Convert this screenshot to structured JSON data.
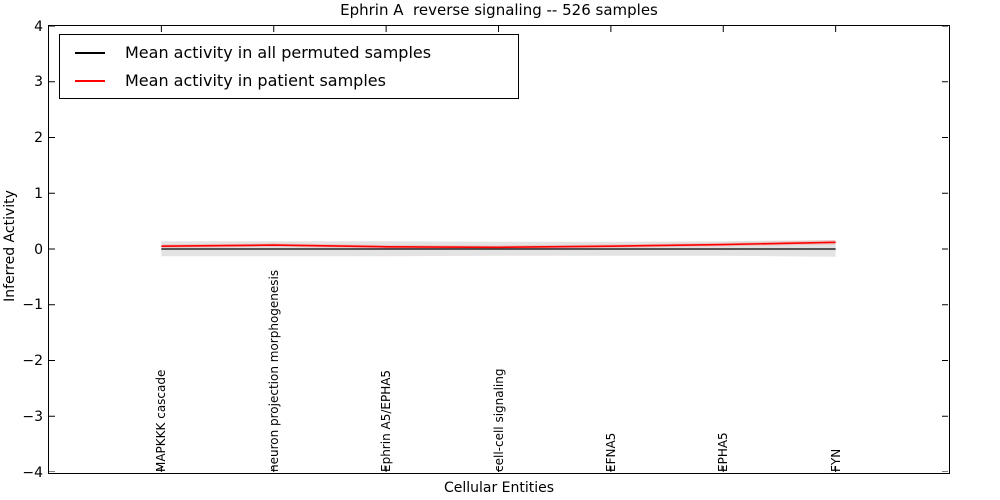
{
  "title": "Ephrin A  reverse signaling -- 526 samples",
  "axes": {
    "ylabel": "Inferred Activity",
    "xlabel": "Cellular Entities"
  },
  "legend": {
    "position": "upper left",
    "items": [
      {
        "label": "Mean activity in all permuted samples",
        "color": "#000000"
      },
      {
        "label": "Mean activity in patient samples",
        "color": "#ff0000"
      }
    ]
  },
  "chart_data": {
    "type": "line",
    "title": "Ephrin A  reverse signaling -- 526 samples",
    "xlabel": "Cellular Entities",
    "ylabel": "Inferred Activity",
    "grid": false,
    "legend_position": "upper left",
    "xlim": [
      -1,
      7
    ],
    "ylim": [
      -4,
      4
    ],
    "ytick_values": [
      4,
      3,
      2,
      1,
      0,
      -1,
      -2,
      -3,
      -4
    ],
    "ytick_labels": [
      "4",
      "3",
      "2",
      "1",
      "0",
      "−1",
      "−2",
      "−3",
      "−4"
    ],
    "categories": [
      "MAPKKK cascade",
      "neuron projection morphogenesis",
      "Ephrin A5/EPHA5",
      "cell-cell signaling",
      "EFNA5",
      "EPHA5",
      "FYN"
    ],
    "x_positions": [
      0,
      1,
      2,
      3,
      4,
      5,
      6
    ],
    "series": [
      {
        "name": "Mean activity in all permuted samples",
        "color": "#000000",
        "style": "solid",
        "width": 1.3,
        "values": [
          0,
          0,
          0,
          0,
          0,
          0,
          0
        ]
      },
      {
        "name": "Mean activity in patient samples",
        "color": "#ff0000",
        "style": "solid",
        "width": 1.6,
        "values": [
          0.05,
          0.07,
          0.04,
          0.03,
          0.05,
          0.08,
          0.12
        ]
      },
      {
        "name": "zero reference line",
        "color": "#000000",
        "style": "dashed",
        "width": 1.1,
        "values": [
          0,
          0,
          0,
          0,
          0,
          0,
          0
        ]
      }
    ],
    "bands": [
      {
        "name": "permuted samples std band",
        "color": "#e3e3e3",
        "opacity": 1,
        "upper": [
          0.14,
          0.14,
          0.14,
          0.13,
          0.13,
          0.14,
          0.16
        ],
        "lower": [
          -0.13,
          -0.13,
          -0.13,
          -0.12,
          -0.12,
          -0.12,
          -0.14
        ]
      },
      {
        "name": "patient samples std band",
        "color": "#ff0000",
        "opacity": 0.15,
        "upper": [
          0.08,
          0.1,
          0.07,
          0.06,
          0.08,
          0.11,
          0.16
        ],
        "lower": [
          0.02,
          0.04,
          0.01,
          0.0,
          0.02,
          0.05,
          0.08
        ]
      }
    ]
  }
}
